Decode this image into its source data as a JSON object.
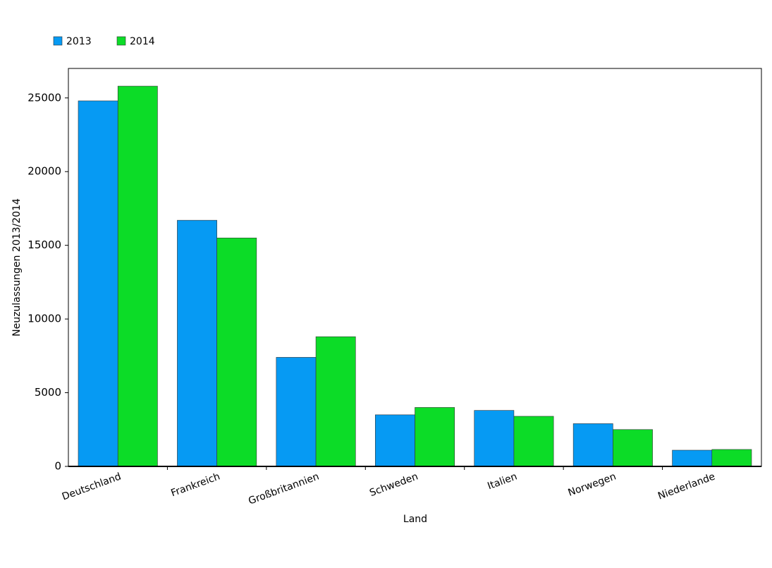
{
  "chart_data": {
    "type": "bar",
    "x_label": "Land",
    "y_label": "Neuzulassungen 2013/2014",
    "categories": [
      "Deutschland",
      "Frankreich",
      "Großbritannien",
      "Schweden",
      "Italien",
      "Norwegen",
      "Niederlande"
    ],
    "series": [
      {
        "name": "2013",
        "color": "#069af3",
        "values": [
          24800,
          16700,
          7400,
          3500,
          3800,
          2900,
          1100
        ]
      },
      {
        "name": "2014",
        "color": "#0cdc27",
        "values": [
          25800,
          15500,
          8800,
          4000,
          3400,
          2500,
          1150
        ]
      }
    ],
    "ylim": [
      0,
      27000
    ],
    "yticks": [
      0,
      5000,
      10000,
      15000,
      20000,
      25000
    ],
    "grid": false,
    "legend": "top-left"
  }
}
